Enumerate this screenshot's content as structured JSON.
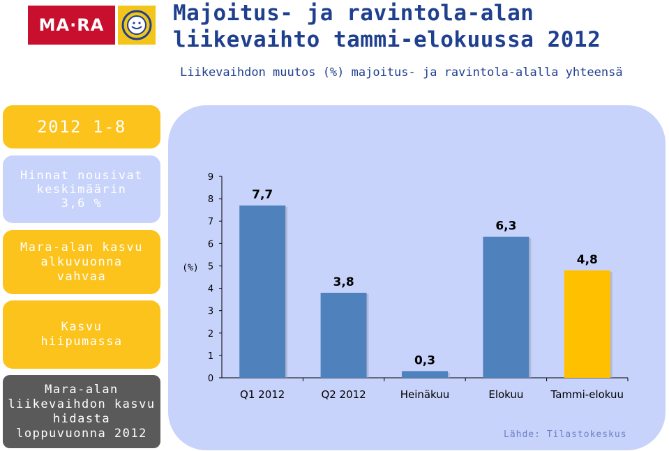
{
  "header": {
    "logo_text": "MA·RA",
    "title_line1": "Majoitus- ja ravintola-alan",
    "title_line2": "liikevaihto tammi-elokuussa 2012",
    "subtitle": "Liikevaihdon muutos (%) majoitus- ja ravintola-alalla yhteensä"
  },
  "sidebar": {
    "period": "2012 1-8",
    "box1": [
      "Hinnat nousivat",
      "keskimäärin",
      "3,6 %"
    ],
    "box2": [
      "Mara-alan kasvu",
      "alkuvuonna",
      "vahvaa"
    ],
    "box3": [
      "Kasvu",
      "hiipumassa"
    ],
    "box4": [
      "Mara-alan",
      "liikevaihdon kasvu",
      "hidasta",
      "loppuvuonna 2012"
    ]
  },
  "colors": {
    "title": "#1f3f8f",
    "brand_red": "#c8102e",
    "accent_yellow": "#fbc31b",
    "panel_blue": "#c8d3fb",
    "bar_blue": "#4f81bd",
    "bar_yellow": "#ffc000"
  },
  "chart_data": {
    "type": "bar",
    "categories": [
      "Q1 2012",
      "Q2 2012",
      "Heinäkuu",
      "Elokuu",
      "Tammi-elokuu"
    ],
    "values": [
      7.7,
      3.8,
      0.3,
      6.3,
      4.8
    ],
    "data_labels": [
      "7,7",
      "3,8",
      "0,3",
      "6,3",
      "4,8"
    ],
    "bar_colors": [
      "#4f81bd",
      "#4f81bd",
      "#4f81bd",
      "#4f81bd",
      "#ffc000"
    ],
    "ylabel": "(%)",
    "ylim": [
      0,
      9
    ],
    "yticks": [
      0,
      1,
      2,
      3,
      4,
      5,
      6,
      7,
      8,
      9
    ],
    "grid": false
  },
  "source": "Lähde: Tilastokeskus"
}
